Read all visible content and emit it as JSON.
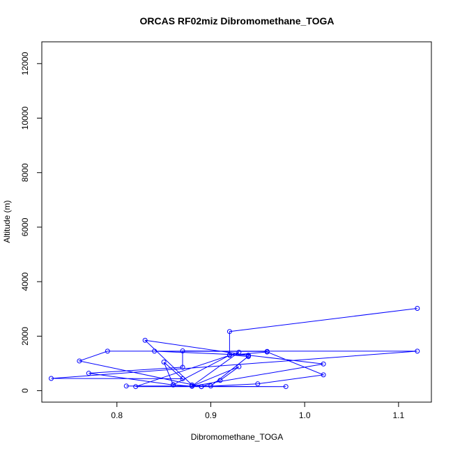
{
  "chart_data": {
    "type": "line",
    "title": "ORCAS RF02miz Dibromomethane_TOGA",
    "xlabel": "Dibromomethane_TOGA",
    "ylabel": "Altitude (m)",
    "xlim": [
      0.72,
      1.135
    ],
    "ylim": [
      -420,
      12800
    ],
    "xticks": [
      0.8,
      0.9,
      1.0,
      1.1
    ],
    "xtick_labels": [
      "0.8",
      "0.9",
      "1.0",
      "1.1"
    ],
    "yticks": [
      0,
      2000,
      4000,
      6000,
      8000,
      10000,
      12000
    ],
    "ytick_labels": [
      "0",
      "2000",
      "4000",
      "6000",
      "8000",
      "10000",
      "12000"
    ],
    "grid": false,
    "colors": {
      "series": "#0000ff",
      "axes": "#000000"
    },
    "series": [
      {
        "marker": "open-circle",
        "x": [
          1.12,
          0.92,
          0.92,
          0.94,
          0.94,
          0.84,
          0.96,
          0.87,
          0.87,
          0.77,
          0.86,
          0.85,
          0.87,
          0.73,
          1.12,
          0.79,
          0.76,
          0.89,
          0.88,
          0.83,
          0.94,
          1.02,
          0.88,
          0.86,
          0.92,
          0.96,
          1.02,
          0.95,
          0.89,
          0.91,
          0.93,
          0.88,
          0.93,
          0.82,
          0.98,
          0.81,
          0.9,
          0.94
        ],
        "y": [
          3020,
          2170,
          1320,
          1250,
          1300,
          1450,
          1440,
          1460,
          860,
          640,
          210,
          1050,
          440,
          450,
          1450,
          1450,
          1090,
          150,
          210,
          1850,
          1300,
          980,
          160,
          220,
          1300,
          1420,
          580,
          250,
          150,
          380,
          880,
          170,
          1410,
          150,
          150,
          170,
          170,
          1260
        ]
      }
    ]
  }
}
